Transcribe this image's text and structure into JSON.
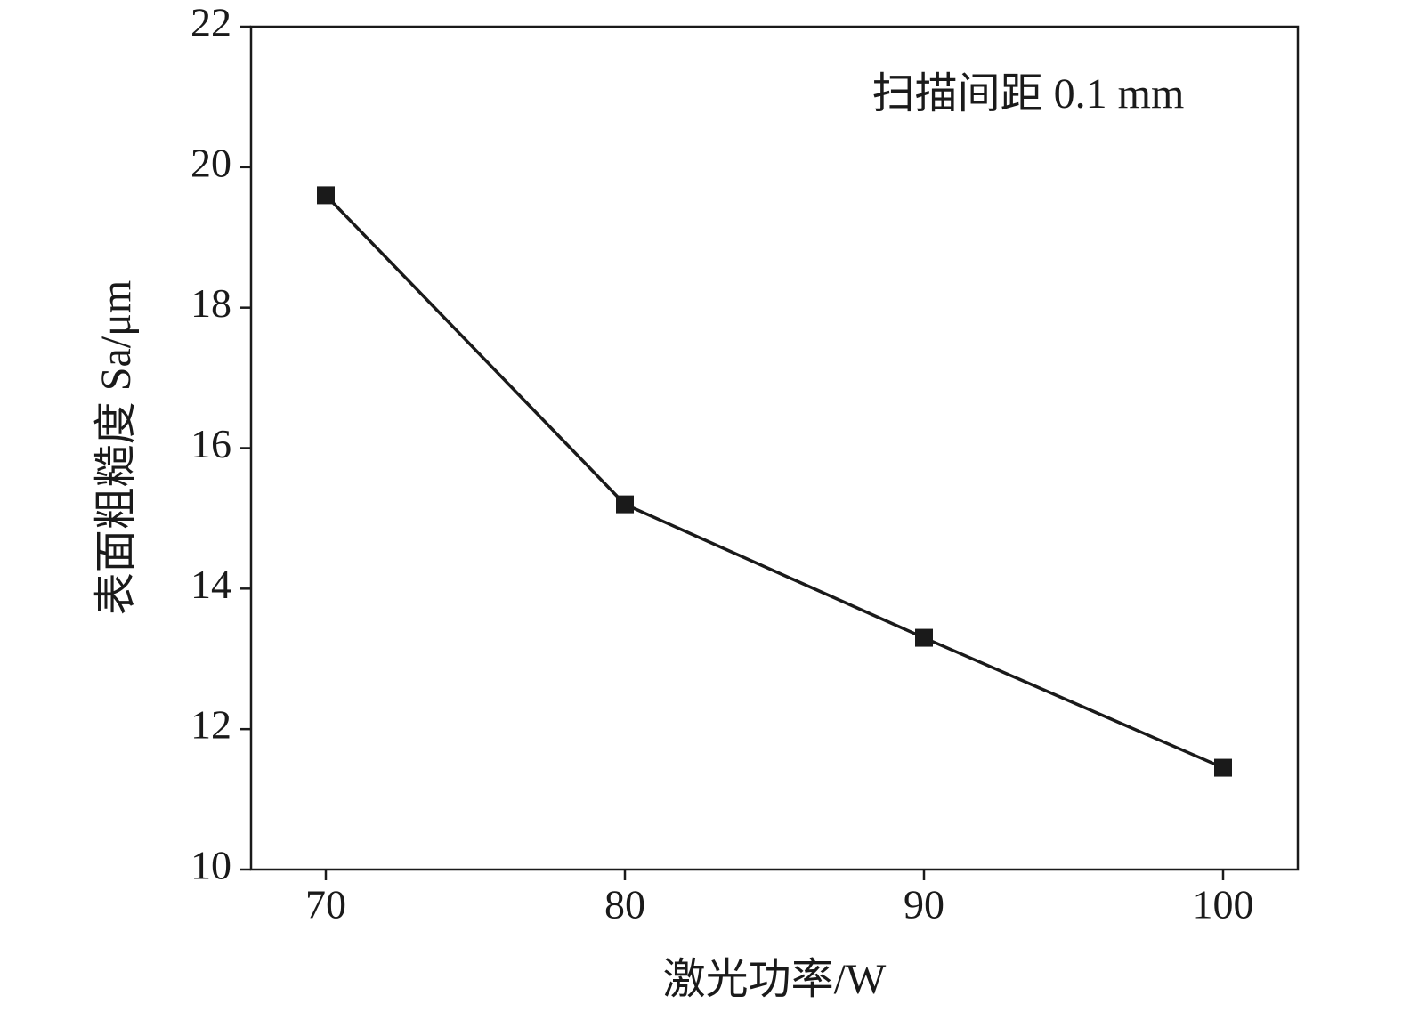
{
  "chart_data": {
    "type": "line",
    "x_label": "激光功率/W",
    "y_label": "表面粗糙度 Sa/μm",
    "annotation": "扫描间距 0.1 mm",
    "x": [
      70,
      80,
      90,
      100
    ],
    "series": [
      {
        "color": "#1a1a1a",
        "values": [
          19.6,
          15.2,
          13.3,
          11.45
        ]
      }
    ],
    "xlim": [
      67.5,
      102.5
    ],
    "xticks": [
      70,
      80,
      90,
      100
    ],
    "ylim": [
      10,
      22
    ],
    "yticks": [
      10,
      12,
      14,
      16,
      18,
      20,
      22
    ],
    "grid": false
  }
}
